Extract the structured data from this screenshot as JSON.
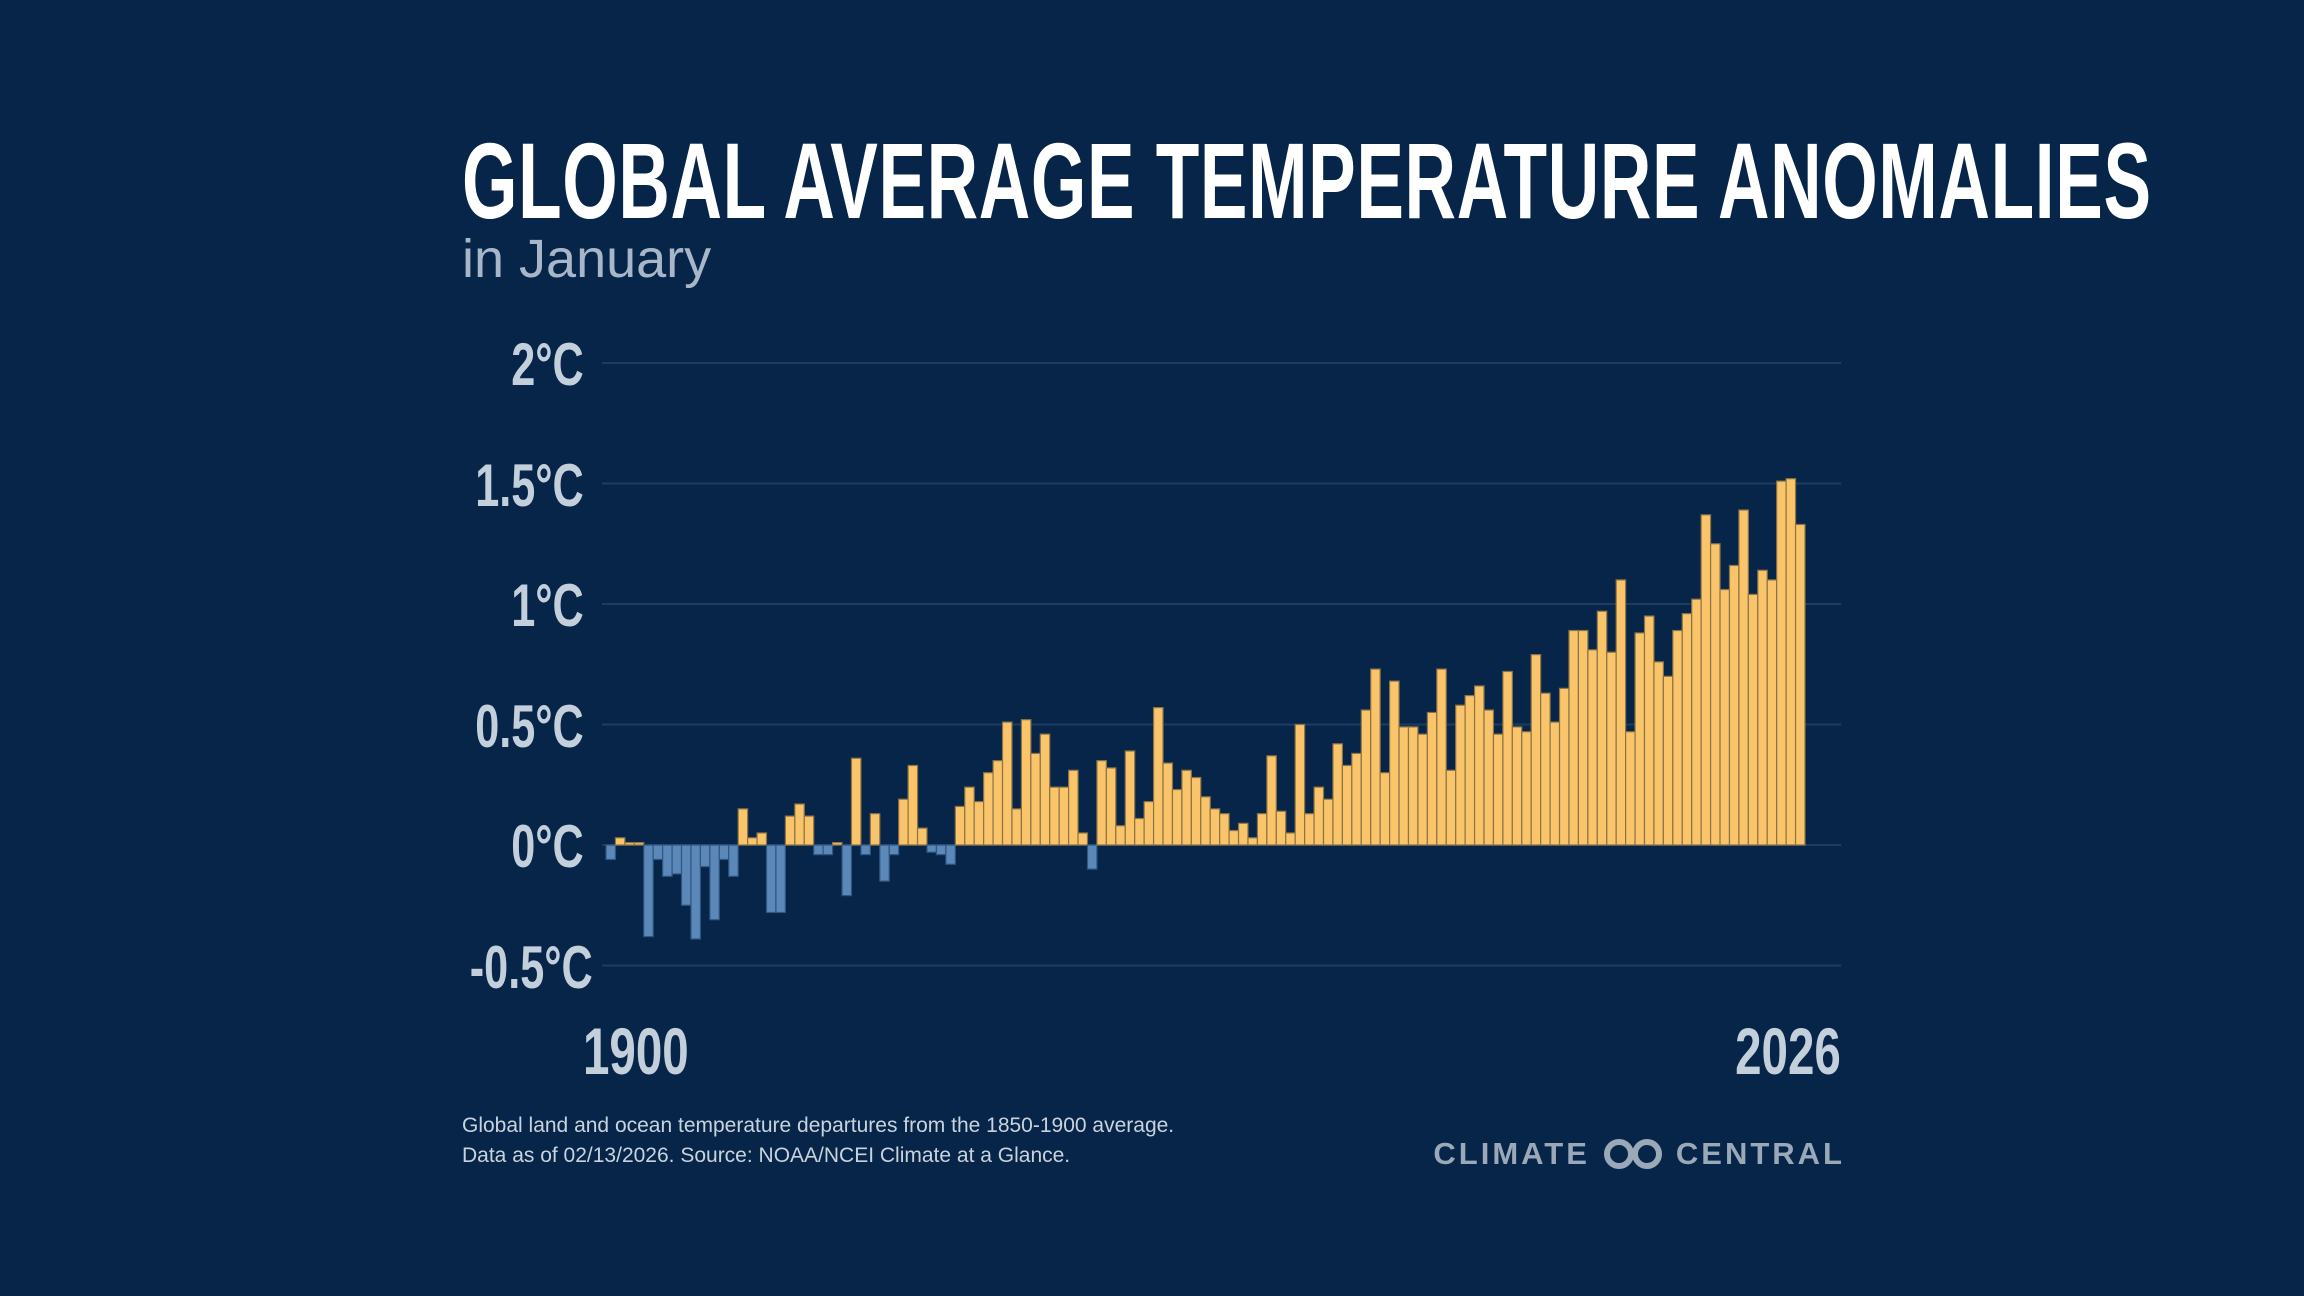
{
  "colors": {
    "background": "#062549",
    "positive": "#f9c46a",
    "negative": "#5b88b8",
    "grid": "#1c3d63"
  },
  "chart_data": {
    "type": "bar",
    "title": "GLOBAL AVERAGE TEMPERATURE ANOMALIES",
    "subtitle": "in January",
    "x_start": 1900,
    "x_end": 2026,
    "xtick_labels": [
      "1900",
      "2026"
    ],
    "ytick_labels": [
      "2°C",
      "1.5°C",
      "1°C",
      "0.5°C",
      "0°C",
      "-0.5°C"
    ],
    "yticks": [
      2,
      1.5,
      1,
      0.5,
      0,
      -0.5
    ],
    "ylim": [
      -0.5,
      2
    ],
    "grid": true,
    "values": [
      -0.06,
      0.03,
      0.01,
      0.01,
      -0.38,
      -0.06,
      -0.13,
      -0.12,
      -0.25,
      -0.39,
      -0.09,
      -0.31,
      -0.06,
      -0.13,
      0.15,
      0.03,
      0.05,
      -0.28,
      -0.28,
      0.12,
      0.17,
      0.12,
      -0.04,
      -0.04,
      0.01,
      -0.21,
      0.36,
      -0.04,
      0.13,
      -0.15,
      -0.04,
      0.19,
      0.33,
      0.07,
      -0.03,
      -0.04,
      -0.08,
      0.16,
      0.24,
      0.18,
      0.3,
      0.35,
      0.51,
      0.15,
      0.52,
      0.38,
      0.46,
      0.24,
      0.24,
      0.31,
      0.05,
      -0.1,
      0.35,
      0.32,
      0.08,
      0.39,
      0.11,
      0.18,
      0.57,
      0.34,
      0.23,
      0.31,
      0.28,
      0.2,
      0.15,
      0.13,
      0.06,
      0.09,
      0.03,
      0.13,
      0.37,
      0.14,
      0.05,
      0.5,
      0.13,
      0.24,
      0.19,
      0.42,
      0.33,
      0.38,
      0.56,
      0.73,
      0.3,
      0.68,
      0.49,
      0.49,
      0.46,
      0.55,
      0.73,
      0.31,
      0.58,
      0.62,
      0.66,
      0.56,
      0.46,
      0.72,
      0.49,
      0.47,
      0.79,
      0.63,
      0.51,
      0.65,
      0.89,
      0.89,
      0.81,
      0.97,
      0.8,
      1.1,
      0.47,
      0.88,
      0.95,
      0.76,
      0.7,
      0.89,
      0.96,
      1.02,
      1.37,
      1.25,
      1.06,
      1.16,
      1.39,
      1.04,
      1.14,
      1.1,
      1.51,
      1.52,
      1.33
    ]
  },
  "footnote": {
    "line1": "Global land and ocean temperature departures from the 1850-1900 average.",
    "line2": "Data as of 02/13/2026. Source: NOAA/NCEI Climate at a Glance."
  },
  "logo": {
    "left": "CLIMATE",
    "right": "CENTRAL",
    "icon": "infinity-loop-icon"
  }
}
